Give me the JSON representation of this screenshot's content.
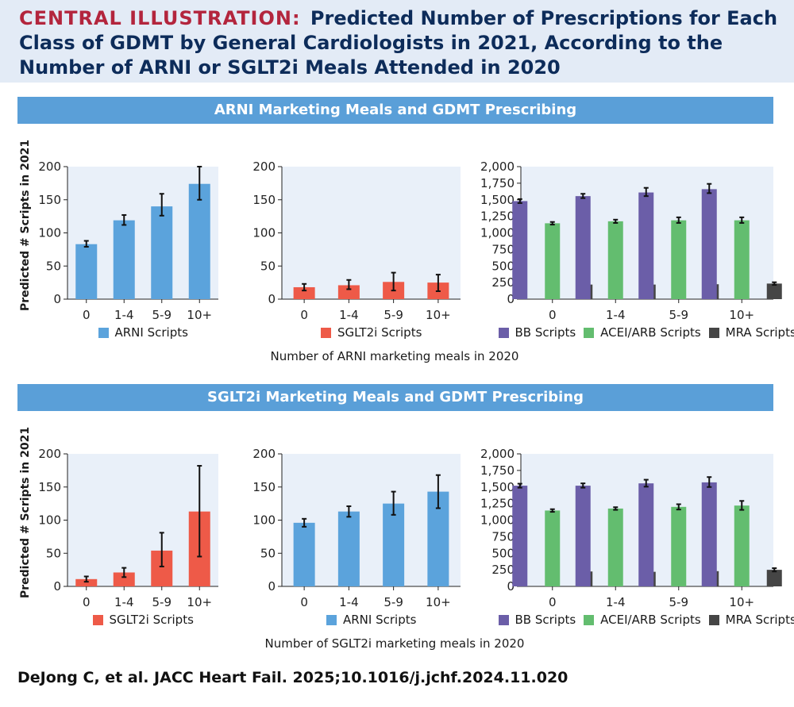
{
  "header": {
    "label": "CENTRAL ILLUSTRATION:",
    "title": "Predicted Number of Prescriptions for Each Class of GDMT by General Cardiologists in 2021, According to the Number of ARNI or SGLT2i Meals Attended in 2020"
  },
  "sections": [
    {
      "title": "ARNI Marketing Meals and GDMT Prescribing",
      "ylabel": "Predicted # Scripts in 2021",
      "xcaption": "Number of ARNI marketing meals in 2020"
    },
    {
      "title": "SGLT2i Marketing Meals and GDMT Prescribing",
      "ylabel": "Predicted # Scripts in 2021",
      "xcaption": "Number of SGLT2i marketing meals in 2020"
    }
  ],
  "citation": "DeJong C, et al. JACC Heart Fail. 2025;10.1016/j.jchf.2024.11.020",
  "colors": {
    "arni": "#5ba3dc",
    "sglt2i": "#ee5a48",
    "bb": "#6b5ea8",
    "acei": "#63bd6f",
    "mra": "#454545",
    "plot_bg": "#e9f0f9"
  },
  "chart_data": [
    {
      "type": "bar",
      "categories": [
        "0",
        "1-4",
        "5-9",
        "10+"
      ],
      "ylim": [
        0,
        200
      ],
      "yticks": [
        "0",
        "50",
        "100",
        "150",
        "200"
      ],
      "series": [
        {
          "name": "ARNI Scripts",
          "color": "#5ba3dc",
          "values": [
            83,
            119,
            140,
            174
          ],
          "lower": [
            79,
            112,
            126,
            150
          ],
          "upper": [
            88,
            127,
            159,
            200
          ]
        }
      ]
    },
    {
      "type": "bar",
      "categories": [
        "0",
        "1-4",
        "5-9",
        "10+"
      ],
      "ylim": [
        0,
        200
      ],
      "yticks": [
        "0",
        "50",
        "100",
        "150",
        "200"
      ],
      "series": [
        {
          "name": "SGLT2i Scripts",
          "color": "#ee5a48",
          "values": [
            18,
            21,
            26,
            25
          ],
          "lower": [
            13,
            15,
            13,
            12
          ],
          "upper": [
            23,
            29,
            40,
            37
          ]
        }
      ]
    },
    {
      "type": "bar",
      "categories": [
        "0",
        "1-4",
        "5-9",
        "10+"
      ],
      "ylim": [
        0,
        2000
      ],
      "yticks": [
        "0",
        "250",
        "500",
        "750",
        "1,000",
        "1,250",
        "1,500",
        "1,750",
        "2,000"
      ],
      "series": [
        {
          "name": "BB Scripts",
          "color": "#6b5ea8",
          "values": [
            1480,
            1555,
            1610,
            1660
          ],
          "lower": [
            1450,
            1525,
            1555,
            1600
          ],
          "upper": [
            1510,
            1590,
            1680,
            1740
          ]
        },
        {
          "name": "ACEI/ARB Scripts",
          "color": "#63bd6f",
          "values": [
            1145,
            1175,
            1190,
            1190
          ],
          "lower": [
            1125,
            1150,
            1150,
            1150
          ],
          "upper": [
            1165,
            1200,
            1235,
            1235
          ]
        },
        {
          "name": "MRA Scripts",
          "color": "#454545",
          "values": [
            220,
            220,
            225,
            235
          ],
          "lower": [
            205,
            205,
            210,
            215
          ],
          "upper": [
            235,
            235,
            240,
            255
          ]
        }
      ]
    },
    {
      "type": "bar",
      "categories": [
        "0",
        "1-4",
        "5-9",
        "10+"
      ],
      "ylim": [
        0,
        200
      ],
      "yticks": [
        "0",
        "50",
        "100",
        "150",
        "200"
      ],
      "series": [
        {
          "name": "SGLT2i Scripts",
          "color": "#ee5a48",
          "values": [
            11,
            21,
            54,
            113
          ],
          "lower": [
            7,
            14,
            30,
            45
          ],
          "upper": [
            15,
            28,
            81,
            182
          ]
        }
      ]
    },
    {
      "type": "bar",
      "categories": [
        "0",
        "1-4",
        "5-9",
        "10+"
      ],
      "ylim": [
        0,
        200
      ],
      "yticks": [
        "0",
        "50",
        "100",
        "150",
        "200"
      ],
      "series": [
        {
          "name": "ARNI Scripts",
          "color": "#5ba3dc",
          "values": [
            96,
            113,
            125,
            143
          ],
          "lower": [
            90,
            105,
            108,
            118
          ],
          "upper": [
            102,
            121,
            143,
            168
          ]
        }
      ]
    },
    {
      "type": "bar",
      "categories": [
        "0",
        "1-4",
        "5-9",
        "10+"
      ],
      "ylim": [
        0,
        2000
      ],
      "yticks": [
        "0",
        "250",
        "500",
        "750",
        "1,000",
        "1,250",
        "1,500",
        "1,750",
        "2,000"
      ],
      "series": [
        {
          "name": "BB Scripts",
          "color": "#6b5ea8",
          "values": [
            1520,
            1520,
            1555,
            1570
          ],
          "lower": [
            1490,
            1490,
            1505,
            1500
          ],
          "upper": [
            1550,
            1555,
            1610,
            1650
          ]
        },
        {
          "name": "ACEI/ARB Scripts",
          "color": "#63bd6f",
          "values": [
            1145,
            1175,
            1200,
            1220
          ],
          "lower": [
            1125,
            1155,
            1160,
            1155
          ],
          "upper": [
            1165,
            1195,
            1240,
            1290
          ]
        },
        {
          "name": "MRA Scripts",
          "color": "#454545",
          "values": [
            225,
            220,
            230,
            250
          ],
          "lower": [
            210,
            205,
            210,
            225
          ],
          "upper": [
            240,
            235,
            250,
            275
          ]
        }
      ]
    }
  ]
}
